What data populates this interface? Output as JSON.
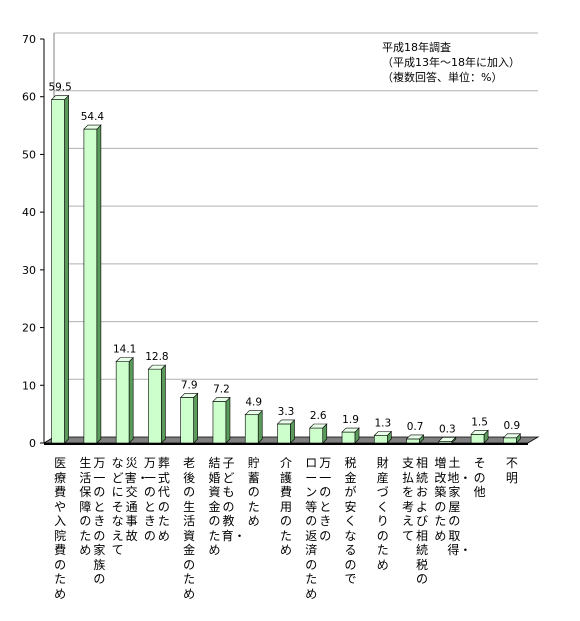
{
  "chart_data": {
    "type": "bar",
    "style": "3d",
    "bar_color": "#ccffcc",
    "notes": [
      "平成18年調査",
      "（平成13年～18年に加入）",
      "（複数回答、単位：%）"
    ],
    "ylim": [
      0,
      70
    ],
    "yticks": [
      0,
      10,
      20,
      30,
      40,
      50,
      60,
      70
    ],
    "grid": true,
    "categories": [
      [
        "医療費や入院費のため"
      ],
      [
        "万一のときの家族の",
        "生活保障のため"
      ],
      [
        "災害・交通事故",
        "などにそなえて"
      ],
      [
        "葬式代のため",
        "万一のときの"
      ],
      [
        "老後の生活資金のため"
      ],
      [
        "子どもの教育・",
        "結婚資金のため"
      ],
      [
        "貯蓄のため"
      ],
      [
        "介護費用のため"
      ],
      [
        "万一のときの",
        "ローン等の返済のため"
      ],
      [
        "税金が安くなるので"
      ],
      [
        "財産づくりのため"
      ],
      [
        "相続および相続税の",
        "支払を考えて"
      ],
      [
        "土地・家屋の取得・",
        "増改築のため"
      ],
      [
        "その他"
      ],
      [
        "不明"
      ]
    ],
    "values": [
      59.5,
      54.4,
      14.1,
      12.8,
      7.9,
      7.2,
      4.9,
      3.3,
      2.6,
      1.9,
      1.3,
      0.7,
      0.3,
      1.5,
      0.9
    ],
    "value_labels": [
      "59.5",
      "54.4",
      "14.1",
      "12.8",
      "7.9",
      "7.2",
      "4.9",
      "3.3",
      "2.6",
      "1.9",
      "1.3",
      "0.7",
      "0.3",
      "1.5",
      "0.9"
    ]
  }
}
